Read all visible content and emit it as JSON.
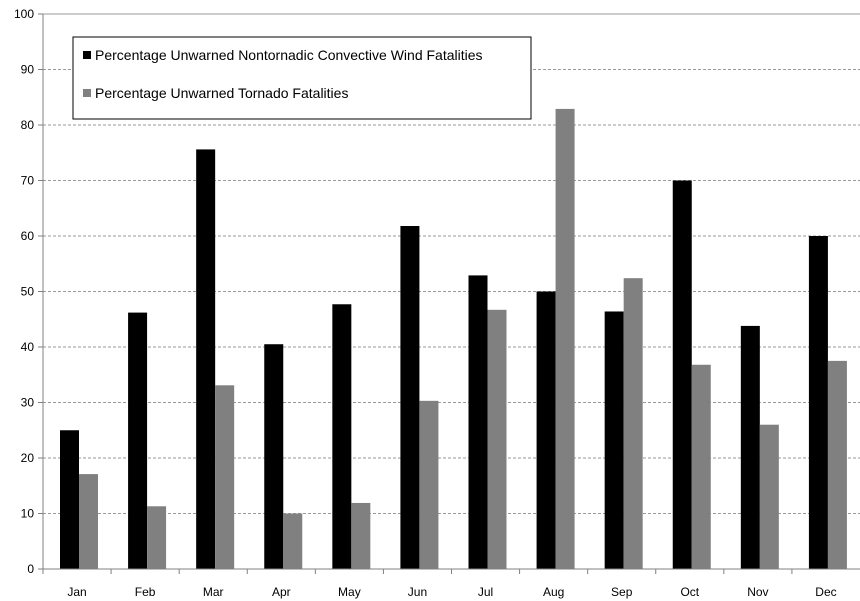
{
  "chart_data": {
    "type": "bar",
    "title": "",
    "xlabel": "",
    "ylabel": "",
    "ylim": [
      0,
      100
    ],
    "yticks": [
      0,
      10,
      20,
      30,
      40,
      50,
      60,
      70,
      80,
      90,
      100
    ],
    "grid": true,
    "legend_position": "top-left",
    "categories": [
      "Jan",
      "Feb",
      "Mar",
      "Apr",
      "May",
      "Jun",
      "Jul",
      "Aug",
      "Sep",
      "Oct",
      "Nov",
      "Dec"
    ],
    "series": [
      {
        "name": "Percentage Unwarned Nontornadic Convective Wind Fatalities",
        "color": "#000000",
        "values": [
          25,
          46.2,
          75.6,
          40.5,
          47.7,
          61.8,
          52.9,
          50,
          46.4,
          70,
          43.8,
          60
        ]
      },
      {
        "name": "Percentage Unwarned Tornado Fatalities",
        "color": "#808080",
        "values": [
          17.1,
          11.3,
          33.1,
          10,
          11.9,
          30.3,
          46.7,
          82.9,
          52.4,
          36.8,
          26,
          37.5
        ]
      }
    ]
  }
}
